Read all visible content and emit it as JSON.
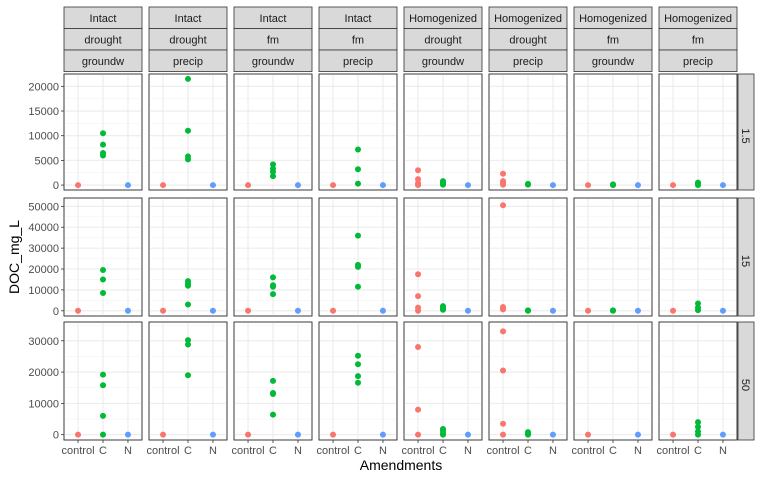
{
  "chart_data": {
    "type": "scatter",
    "xlabel": "Amendments",
    "ylabel": "DOC_mg_L",
    "categories": [
      "control",
      "C",
      "N"
    ],
    "colors": {
      "control": "#F8766D",
      "C": "#00BA38",
      "N": "#619CFF"
    },
    "columns": [
      {
        "strip": [
          "Intact",
          "drought",
          "groundw"
        ]
      },
      {
        "strip": [
          "Intact",
          "drought",
          "precip"
        ]
      },
      {
        "strip": [
          "Intact",
          "fm",
          "groundw"
        ]
      },
      {
        "strip": [
          "Intact",
          "fm",
          "precip"
        ]
      },
      {
        "strip": [
          "Homogenized",
          "drought",
          "groundw"
        ]
      },
      {
        "strip": [
          "Homogenized",
          "drought",
          "precip"
        ]
      },
      {
        "strip": [
          "Homogenized",
          "fm",
          "groundw"
        ]
      },
      {
        "strip": [
          "Homogenized",
          "fm",
          "precip"
        ]
      }
    ],
    "rows": [
      {
        "label": "1.5",
        "ylim": [
          -1000,
          22500
        ],
        "yticks": [
          0,
          5000,
          10000,
          15000,
          20000
        ],
        "yticklabels": [
          "0",
          "5000",
          "10000",
          "15000",
          "20000"
        ],
        "points": [
          {
            "control": [
              0
            ],
            "C": [
              6000,
              6500,
              8200,
              10500
            ],
            "N": [
              0
            ]
          },
          {
            "control": [
              0
            ],
            "C": [
              5200,
              5800,
              11000,
              21500
            ],
            "N": [
              0
            ]
          },
          {
            "control": [
              0
            ],
            "C": [
              1800,
              2700,
              3300,
              4200
            ],
            "N": [
              0
            ]
          },
          {
            "control": [
              0
            ],
            "C": [
              300,
              3200,
              7200
            ],
            "N": [
              0
            ]
          },
          {
            "control": [
              0,
              400,
              1200,
              3000
            ],
            "C": [
              100,
              300,
              500,
              800
            ],
            "N": [
              0
            ]
          },
          {
            "control": [
              100,
              400,
              800,
              2300
            ],
            "C": [
              100,
              250
            ],
            "N": [
              0
            ]
          },
          {
            "control": [
              0
            ],
            "C": [
              0,
              150
            ],
            "N": [
              0
            ]
          },
          {
            "control": [
              0
            ],
            "C": [
              0,
              300,
              500
            ],
            "N": [
              0
            ]
          }
        ]
      },
      {
        "label": "15",
        "ylim": [
          -2500,
          54000
        ],
        "yticks": [
          0,
          10000,
          20000,
          30000,
          40000,
          50000
        ],
        "yticklabels": [
          "0",
          "10000",
          "20000",
          "30000",
          "40000",
          "50000"
        ],
        "points": [
          {
            "control": [
              0
            ],
            "C": [
              8500,
              15000,
              19500
            ],
            "N": [
              0
            ]
          },
          {
            "control": [
              0
            ],
            "C": [
              3000,
              12000,
              13000,
              14200
            ],
            "N": [
              0
            ]
          },
          {
            "control": [
              0
            ],
            "C": [
              8000,
              11500,
              12200,
              16000
            ],
            "N": [
              0
            ]
          },
          {
            "control": [
              0
            ],
            "C": [
              11500,
              21000,
              22000,
              36000
            ],
            "N": [
              0
            ]
          },
          {
            "control": [
              0,
              1500,
              7000,
              17500
            ],
            "C": [
              500,
              1000,
              1600,
              2200
            ],
            "N": [
              0
            ]
          },
          {
            "control": [
              700,
              1200,
              1800,
              50500
            ],
            "C": [
              0,
              200
            ],
            "N": [
              0
            ]
          },
          {
            "control": [
              0
            ],
            "C": [
              0,
              200
            ],
            "N": [
              0
            ]
          },
          {
            "control": [
              0
            ],
            "C": [
              300,
              1500,
              3500
            ],
            "N": [
              0
            ]
          }
        ]
      },
      {
        "label": "50",
        "ylim": [
          -1700,
          36000
        ],
        "yticks": [
          0,
          10000,
          20000,
          30000
        ],
        "yticklabels": [
          "0",
          "10000",
          "20000",
          "30000"
        ],
        "points": [
          {
            "control": [
              0
            ],
            "C": [
              0,
              6000,
              15800,
              19200
            ],
            "N": [
              0
            ]
          },
          {
            "control": [
              0
            ],
            "C": [
              19000,
              28800,
              30200
            ],
            "N": [
              0
            ]
          },
          {
            "control": [
              0
            ],
            "C": [
              6400,
              13000,
              13300,
              17200
            ],
            "N": [
              0
            ]
          },
          {
            "control": [
              0
            ],
            "C": [
              16600,
              18700,
              22500,
              25200
            ],
            "N": [
              0
            ]
          },
          {
            "control": [
              0,
              8000,
              28000
            ],
            "C": [
              0,
              400,
              1200,
              1800
            ],
            "N": [
              0
            ]
          },
          {
            "control": [
              0,
              3500,
              20500,
              33000
            ],
            "C": [
              0,
              400,
              800
            ],
            "N": [
              0
            ]
          },
          {
            "control": [
              0
            ],
            "C": [],
            "N": [
              0
            ]
          },
          {
            "control": [
              0
            ],
            "C": [
              0,
              1000,
              2500,
              4000
            ],
            "N": [
              0
            ]
          }
        ]
      }
    ]
  }
}
